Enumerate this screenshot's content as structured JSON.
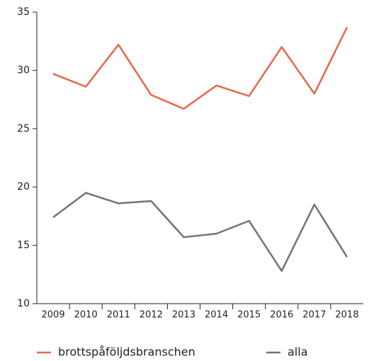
{
  "chart_data": {
    "type": "line",
    "categories": [
      "2009",
      "2010",
      "2011",
      "2012",
      "2013",
      "2014",
      "2015",
      "2016",
      "2017",
      "2018"
    ],
    "series": [
      {
        "name": "brottspåföljdsbranschen",
        "color": "#e8664a",
        "values": [
          29.7,
          28.6,
          32.2,
          27.9,
          26.7,
          28.7,
          27.8,
          32.0,
          28.0,
          33.7
        ]
      },
      {
        "name": "alla",
        "color": "#737373",
        "values": [
          17.4,
          19.5,
          18.6,
          18.8,
          15.7,
          16.0,
          17.1,
          12.8,
          18.5,
          14.0
        ]
      }
    ],
    "ylim": [
      10,
      35
    ],
    "yticks": [
      10,
      15,
      20,
      25,
      30,
      35
    ],
    "grid": false,
    "legend": "bottom"
  }
}
